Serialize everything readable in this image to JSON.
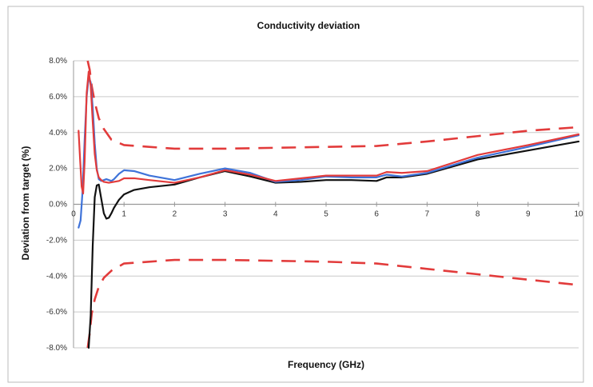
{
  "chart_data": {
    "type": "line",
    "title": "Conductivity deviation",
    "xlabel": "Frequency (GHz)",
    "ylabel": "Deviation from target (%)",
    "xlim": [
      0,
      10
    ],
    "ylim": [
      -8,
      8
    ],
    "x_ticks": [
      0,
      1,
      2,
      3,
      4,
      5,
      6,
      7,
      8,
      9,
      10
    ],
    "x_tick_labels": [
      "0",
      "1",
      "2",
      "3",
      "4",
      "5",
      "6",
      "7",
      "8",
      "9",
      "10"
    ],
    "y_ticks": [
      -8,
      -6,
      -4,
      -2,
      0,
      2,
      4,
      6,
      8
    ],
    "y_tick_labels": [
      "-8.0%",
      "-6.0%",
      "-4.0%",
      "-2.0%",
      "0.0%",
      "2.0%",
      "4.0%",
      "6.0%",
      "8.0%"
    ],
    "grid": {
      "horizontal": true,
      "vertical": false
    },
    "colors": {
      "upper_limit": "#e23b3b",
      "lower_limit": "#e23b3b",
      "black_series": "#111111",
      "blue_series": "#3f73d9",
      "red_series": "#e23b3b",
      "grid": "#c9c9c9",
      "axis": "#999999",
      "frame": "#bbbbbb"
    },
    "series": [
      {
        "style": "dashed",
        "color_key": "upper_limit",
        "x": [
          0.28,
          0.32,
          0.36,
          0.42,
          0.5,
          0.6,
          0.75,
          1.0,
          1.5,
          2.0,
          3.0,
          4.0,
          5.0,
          6.0,
          7.0,
          8.0,
          9.0,
          10.0
        ],
        "y": [
          8.0,
          7.5,
          6.6,
          5.7,
          4.8,
          4.2,
          3.6,
          3.3,
          3.2,
          3.1,
          3.1,
          3.15,
          3.2,
          3.25,
          3.5,
          3.8,
          4.1,
          4.3
        ]
      },
      {
        "style": "dashed",
        "color_key": "lower_limit",
        "x": [
          0.28,
          0.32,
          0.36,
          0.42,
          0.5,
          0.6,
          0.75,
          1.0,
          1.5,
          2.0,
          3.0,
          4.0,
          5.0,
          6.0,
          7.0,
          8.0,
          9.0,
          10.0
        ],
        "y": [
          -8.0,
          -7.2,
          -6.1,
          -5.3,
          -4.6,
          -4.1,
          -3.7,
          -3.3,
          -3.2,
          -3.1,
          -3.1,
          -3.15,
          -3.2,
          -3.3,
          -3.6,
          -3.9,
          -4.2,
          -4.5
        ]
      },
      {
        "style": "solid",
        "color_key": "black_series",
        "x": [
          0.3,
          0.34,
          0.38,
          0.42,
          0.46,
          0.5,
          0.55,
          0.6,
          0.65,
          0.7,
          0.75,
          0.8,
          0.9,
          1.0,
          1.2,
          1.5,
          2.0,
          2.5,
          3.0,
          3.5,
          4.0,
          4.5,
          5.0,
          5.5,
          6.0,
          6.2,
          6.5,
          7.0,
          8.0,
          9.0,
          10.0
        ],
        "y": [
          -8.0,
          -6.2,
          -2.3,
          0.4,
          1.05,
          1.1,
          0.3,
          -0.5,
          -0.8,
          -0.75,
          -0.5,
          -0.2,
          0.25,
          0.55,
          0.8,
          0.95,
          1.1,
          1.5,
          1.85,
          1.55,
          1.2,
          1.25,
          1.35,
          1.35,
          1.3,
          1.5,
          1.5,
          1.7,
          2.5,
          3.0,
          3.5
        ]
      },
      {
        "style": "solid",
        "color_key": "blue_series",
        "x": [
          0.1,
          0.14,
          0.18,
          0.22,
          0.26,
          0.3,
          0.34,
          0.38,
          0.42,
          0.46,
          0.5,
          0.55,
          0.6,
          0.65,
          0.7,
          0.75,
          0.8,
          0.9,
          1.0,
          1.2,
          1.5,
          2.0,
          2.5,
          3.0,
          3.5,
          4.0,
          4.5,
          5.0,
          5.5,
          6.0,
          6.2,
          6.5,
          7.0,
          8.0,
          9.0,
          10.0
        ],
        "y": [
          -1.3,
          -0.9,
          0.8,
          3.6,
          6.0,
          7.1,
          6.8,
          5.4,
          3.4,
          2.0,
          1.4,
          1.3,
          1.35,
          1.4,
          1.35,
          1.3,
          1.4,
          1.7,
          1.9,
          1.85,
          1.6,
          1.35,
          1.7,
          2.0,
          1.75,
          1.25,
          1.35,
          1.55,
          1.5,
          1.5,
          1.65,
          1.55,
          1.75,
          2.6,
          3.2,
          3.85
        ]
      },
      {
        "style": "solid",
        "color_key": "red_series",
        "x": [
          0.1,
          0.13,
          0.16,
          0.19,
          0.22,
          0.26,
          0.3,
          0.34,
          0.38,
          0.42,
          0.46,
          0.5,
          0.55,
          0.6,
          0.7,
          0.8,
          0.9,
          1.0,
          1.2,
          1.5,
          2.0,
          2.5,
          3.0,
          3.5,
          4.0,
          4.5,
          5.0,
          5.5,
          6.0,
          6.2,
          6.5,
          7.0,
          8.0,
          9.0,
          10.0
        ],
        "y": [
          4.1,
          2.5,
          1.0,
          0.6,
          2.4,
          6.2,
          7.4,
          6.6,
          4.6,
          2.8,
          1.9,
          1.5,
          1.35,
          1.25,
          1.2,
          1.25,
          1.3,
          1.45,
          1.45,
          1.35,
          1.2,
          1.5,
          1.9,
          1.65,
          1.3,
          1.45,
          1.6,
          1.6,
          1.6,
          1.8,
          1.75,
          1.85,
          2.75,
          3.3,
          3.9
        ]
      }
    ]
  }
}
